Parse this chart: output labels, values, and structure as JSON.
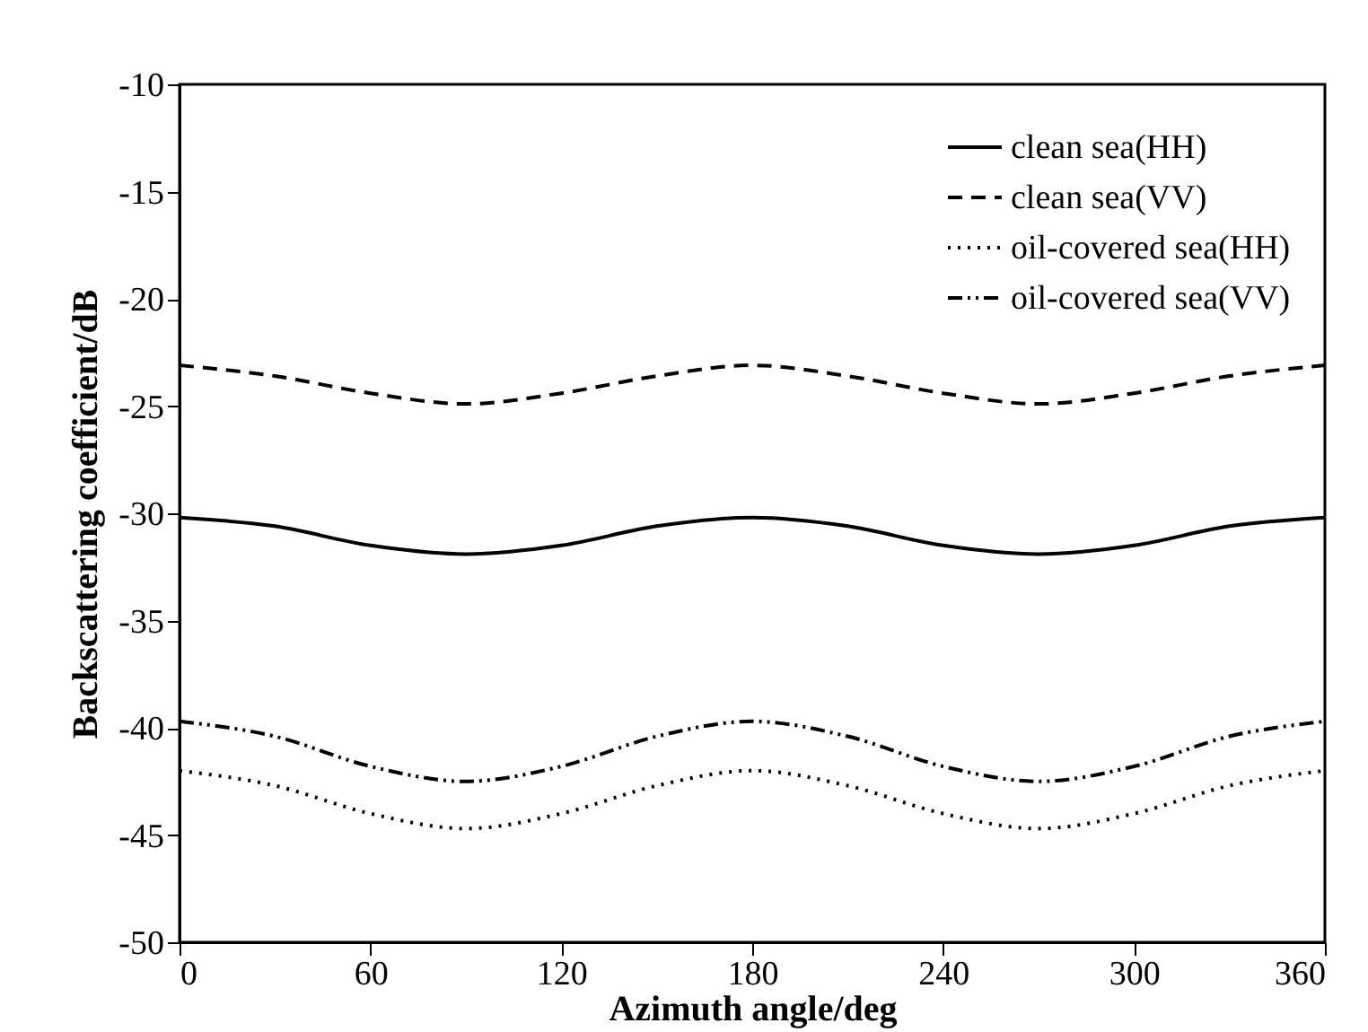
{
  "chart_data": {
    "type": "line",
    "xlabel": "Azimuth angle/deg",
    "ylabel": "Backscattering coefficient/dB",
    "x": [
      0,
      30,
      60,
      90,
      120,
      150,
      180,
      210,
      240,
      270,
      300,
      330,
      360
    ],
    "series": [
      {
        "name": "clean sea(HH)",
        "color": "#000000",
        "line_style": "solid",
        "values": [
          -30.2,
          -30.6,
          -31.5,
          -31.9,
          -31.5,
          -30.6,
          -30.2,
          -30.6,
          -31.5,
          -31.9,
          -31.5,
          -30.6,
          -30.2
        ]
      },
      {
        "name": "clean sea(VV)",
        "color": "#000000",
        "line_style": "dashed",
        "values": [
          -23.1,
          -23.6,
          -24.4,
          -24.9,
          -24.4,
          -23.6,
          -23.1,
          -23.6,
          -24.4,
          -24.9,
          -24.4,
          -23.6,
          -23.1
        ]
      },
      {
        "name": "oil-covered sea(HH)",
        "color": "#000000",
        "line_style": "dotted",
        "values": [
          -42.0,
          -42.7,
          -44.0,
          -44.7,
          -44.0,
          -42.7,
          -42.0,
          -42.7,
          -44.0,
          -44.7,
          -44.0,
          -42.7,
          -42.0
        ]
      },
      {
        "name": "oil-covered sea(VV)",
        "color": "#000000",
        "line_style": "dashdotdot",
        "values": [
          -39.7,
          -40.4,
          -41.8,
          -42.5,
          -41.8,
          -40.4,
          -39.7,
          -40.4,
          -41.8,
          -42.5,
          -41.8,
          -40.4,
          -39.7
        ]
      }
    ],
    "xlim": [
      0,
      360
    ],
    "xticks": [
      0,
      60,
      120,
      180,
      240,
      300,
      360
    ],
    "ylim": [
      -50,
      -10
    ],
    "yticks": [
      -50,
      -45,
      -40,
      -35,
      -30,
      -25,
      -20,
      -15,
      -10
    ],
    "grid": false,
    "legend": "top right",
    "marker": "none"
  }
}
